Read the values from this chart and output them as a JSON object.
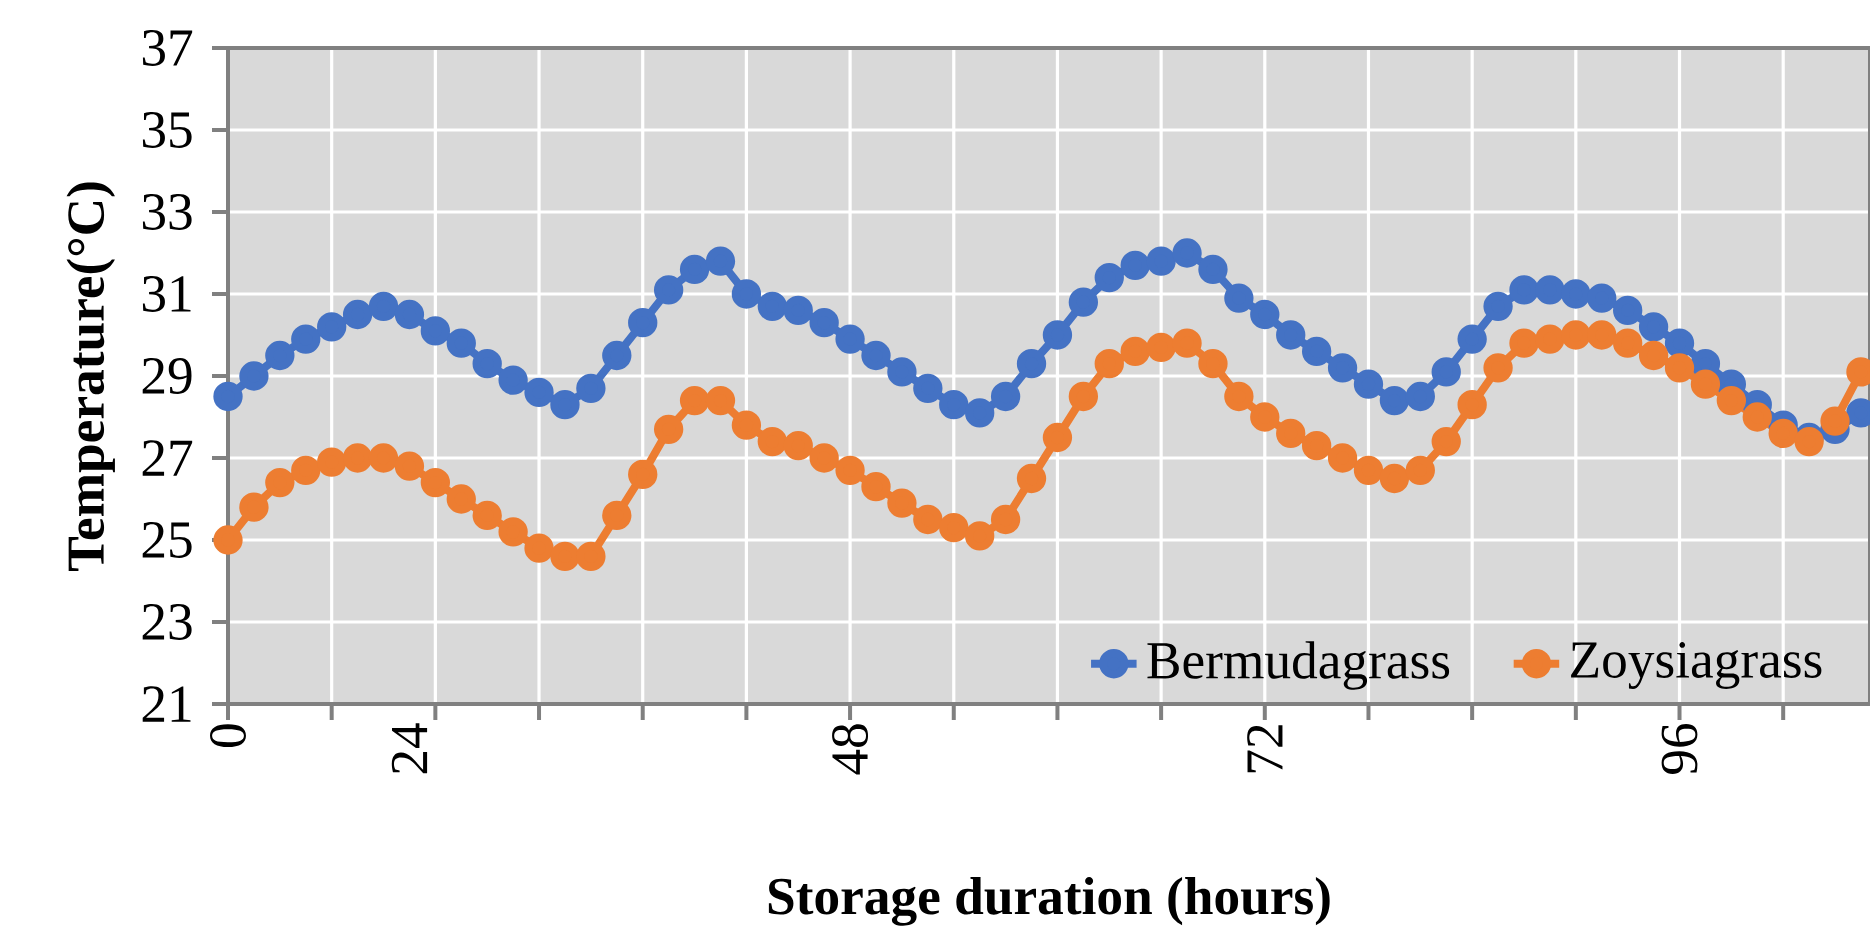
{
  "chart_data": {
    "type": "line",
    "xlabel": "Storage duration (hours)",
    "ylabel": "Temperature(°C)",
    "categories": [
      "0",
      null,
      null,
      null,
      null,
      null,
      null,
      "24",
      null,
      null,
      null,
      null,
      null,
      null,
      null,
      null,
      null,
      null,
      null,
      null,
      null,
      null,
      null,
      null,
      "48",
      null,
      null,
      null,
      null,
      null,
      null,
      null,
      null,
      null,
      null,
      null,
      null,
      null,
      null,
      null,
      "72",
      null,
      null,
      null,
      null,
      null,
      null,
      null,
      null,
      null,
      null,
      null,
      null,
      null,
      null,
      null,
      "96",
      null,
      null,
      null,
      null,
      null,
      null,
      null
    ],
    "series": [
      {
        "name": "Bermudagrass",
        "color": "#4472c4",
        "values": [
          28.5,
          29.0,
          29.5,
          29.9,
          30.2,
          30.5,
          30.7,
          30.5,
          30.1,
          29.8,
          29.3,
          28.9,
          28.6,
          28.3,
          28.7,
          29.5,
          30.3,
          31.1,
          31.6,
          31.8,
          31.0,
          30.7,
          30.6,
          30.3,
          29.9,
          29.5,
          29.1,
          28.7,
          28.3,
          28.1,
          28.5,
          29.3,
          30.0,
          30.8,
          31.4,
          31.7,
          31.8,
          32.0,
          31.6,
          30.9,
          30.5,
          30.0,
          29.6,
          29.2,
          28.8,
          28.4,
          28.5,
          29.1,
          29.9,
          30.7,
          31.1,
          31.1,
          31.0,
          30.9,
          30.6,
          30.2,
          29.8,
          29.3,
          28.8,
          28.3,
          27.8,
          27.5,
          27.7,
          28.1
        ]
      },
      {
        "name": "Zoysiagrass",
        "color": "#ed7d31",
        "values": [
          25.0,
          25.8,
          26.4,
          26.7,
          26.9,
          27.0,
          27.0,
          26.8,
          26.4,
          26.0,
          25.6,
          25.2,
          24.8,
          24.6,
          24.6,
          25.6,
          26.6,
          27.7,
          28.4,
          28.4,
          27.8,
          27.4,
          27.3,
          27.0,
          26.7,
          26.3,
          25.9,
          25.5,
          25.3,
          25.1,
          25.5,
          26.5,
          27.5,
          28.5,
          29.3,
          29.6,
          29.7,
          29.8,
          29.3,
          28.5,
          28.0,
          27.6,
          27.3,
          27.0,
          26.7,
          26.5,
          26.7,
          27.4,
          28.3,
          29.2,
          29.8,
          29.9,
          30.0,
          30.0,
          29.8,
          29.5,
          29.2,
          28.8,
          28.4,
          28.0,
          27.6,
          27.4,
          27.9,
          29.1
        ]
      }
    ],
    "ylim": [
      21,
      37
    ],
    "yticks": [
      21,
      23,
      25,
      27,
      29,
      31,
      33,
      35,
      37
    ],
    "grid": true,
    "legend": "bottom right",
    "marker": "circle",
    "line_style": "solid"
  }
}
